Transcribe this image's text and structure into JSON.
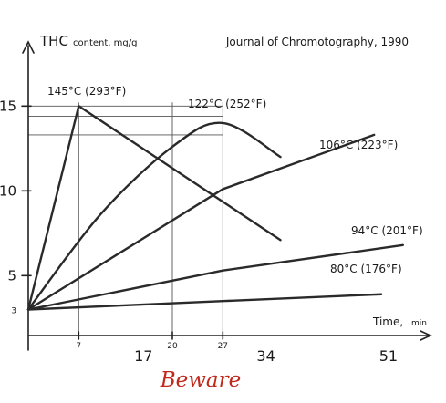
{
  "chart_data": {
    "type": "line",
    "title": "Journal of Chromotography, 1990",
    "ylabel_main": "THC",
    "ylabel_unit": "content, mg/g",
    "xlabel_main": "Time,",
    "xlabel_unit": "min",
    "xlim": [
      0,
      72
    ],
    "ylim": [
      0,
      17.5
    ],
    "y_ticks": [
      {
        "value": 3,
        "label": "3",
        "small": true
      },
      {
        "value": 5,
        "label": "5",
        "small": false
      },
      {
        "value": 10,
        "label": "10",
        "small": false
      },
      {
        "value": 15,
        "label": "15",
        "small": false
      }
    ],
    "x_ticks": [
      {
        "value": 7,
        "label": "7",
        "size": "small",
        "row": "upper"
      },
      {
        "value": 17,
        "label": "17",
        "size": "large",
        "row": "lower"
      },
      {
        "value": 20,
        "label": "20",
        "size": "small",
        "row": "upper"
      },
      {
        "value": 27,
        "label": "27",
        "size": "small",
        "row": "upper"
      },
      {
        "value": 34,
        "label": "34",
        "size": "large",
        "row": "lower"
      },
      {
        "value": 51,
        "label": "51",
        "size": "large",
        "row": "lower"
      }
    ],
    "series": [
      {
        "name": "145°C (293°F)",
        "x": [
          0,
          7,
          35
        ],
        "y": [
          3,
          15,
          7.1
        ]
      },
      {
        "name": "122°C (252°F)",
        "x": [
          0,
          10,
          20,
          27,
          35
        ],
        "y": [
          3,
          8.6,
          12.6,
          14,
          12
        ]
      },
      {
        "name": "106°C (223°F)",
        "x": [
          0,
          27,
          48
        ],
        "y": [
          3,
          10.1,
          13.3
        ]
      },
      {
        "name": "94°C (201°F)",
        "x": [
          0,
          27,
          52
        ],
        "y": [
          3,
          5.3,
          6.8
        ]
      },
      {
        "name": "80°C (176°F)",
        "x": [
          0,
          27,
          49
        ],
        "y": [
          3,
          3.5,
          3.9
        ]
      }
    ],
    "guides": {
      "vertical": [
        7,
        20,
        27
      ],
      "horizontal": [
        15,
        14.4,
        13.3
      ]
    }
  },
  "annotation": {
    "text": "Beware",
    "color": "#c0291c"
  }
}
